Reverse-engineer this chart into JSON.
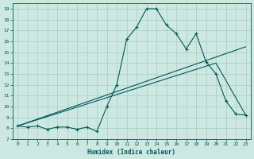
{
  "xlabel": "Humidex (Indice chaleur)",
  "bg_color": "#cce8e0",
  "line_color": "#005858",
  "grid_color": "#a8ccc8",
  "xlim": [
    -0.5,
    23.5
  ],
  "ylim": [
    7.0,
    19.5
  ],
  "yticks": [
    7,
    8,
    9,
    10,
    11,
    12,
    13,
    14,
    15,
    16,
    17,
    18,
    19
  ],
  "xticks": [
    0,
    1,
    2,
    3,
    4,
    5,
    6,
    7,
    8,
    9,
    10,
    11,
    12,
    13,
    14,
    15,
    16,
    17,
    18,
    19,
    20,
    21,
    22,
    23
  ],
  "line1_x": [
    0,
    1,
    2,
    3,
    4,
    5,
    6,
    7,
    8,
    9,
    10,
    11,
    12,
    13,
    14,
    15,
    16,
    17,
    18,
    19,
    20,
    21,
    22,
    23
  ],
  "line1_y": [
    8.2,
    8.1,
    8.2,
    7.9,
    8.1,
    8.1,
    7.9,
    8.1,
    7.7,
    10.0,
    12.0,
    16.2,
    17.3,
    19.0,
    19.0,
    17.5,
    16.7,
    15.3,
    16.7,
    14.1,
    13.0,
    10.5,
    9.3,
    9.2
  ],
  "line2_x": [
    0,
    23
  ],
  "line2_y": [
    8.2,
    15.5
  ],
  "line3_x": [
    0,
    20,
    23
  ],
  "line3_y": [
    8.2,
    14.0,
    9.2
  ],
  "figwidth": 3.2,
  "figheight": 2.0,
  "dpi": 100
}
